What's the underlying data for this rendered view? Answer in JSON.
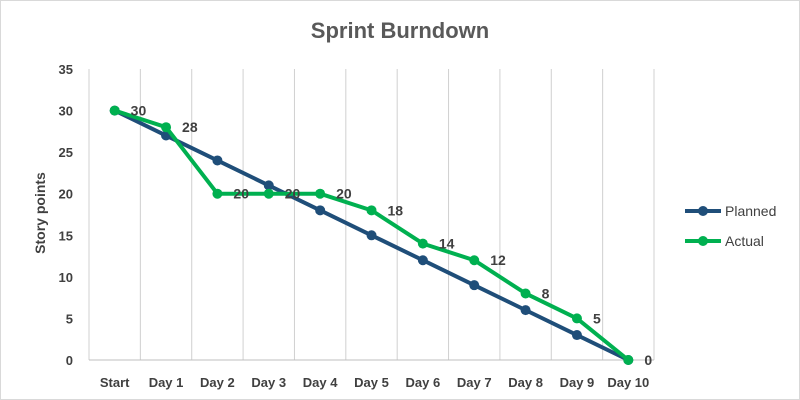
{
  "chart_data": {
    "type": "line",
    "title": "Sprint Burndown",
    "ylabel": "Story points",
    "categories": [
      "Start",
      "Day 1",
      "Day 2",
      "Day 3",
      "Day 4",
      "Day 5",
      "Day 6",
      "Day 7",
      "Day 8",
      "Day 9",
      "Day 10"
    ],
    "ylim": [
      0,
      35
    ],
    "yticks": [
      0,
      5,
      10,
      15,
      20,
      25,
      30,
      35
    ],
    "grid": "vertical",
    "legend": "right",
    "series": [
      {
        "name": "Planned",
        "color": "#1f4e79",
        "values": [
          30,
          27,
          24,
          21,
          18,
          15,
          12,
          9,
          6,
          3,
          0
        ],
        "data_labels": false
      },
      {
        "name": "Actual",
        "color": "#00b050",
        "values": [
          30,
          28,
          20,
          20,
          20,
          18,
          14,
          12,
          8,
          5,
          0
        ],
        "data_labels": true
      }
    ]
  }
}
